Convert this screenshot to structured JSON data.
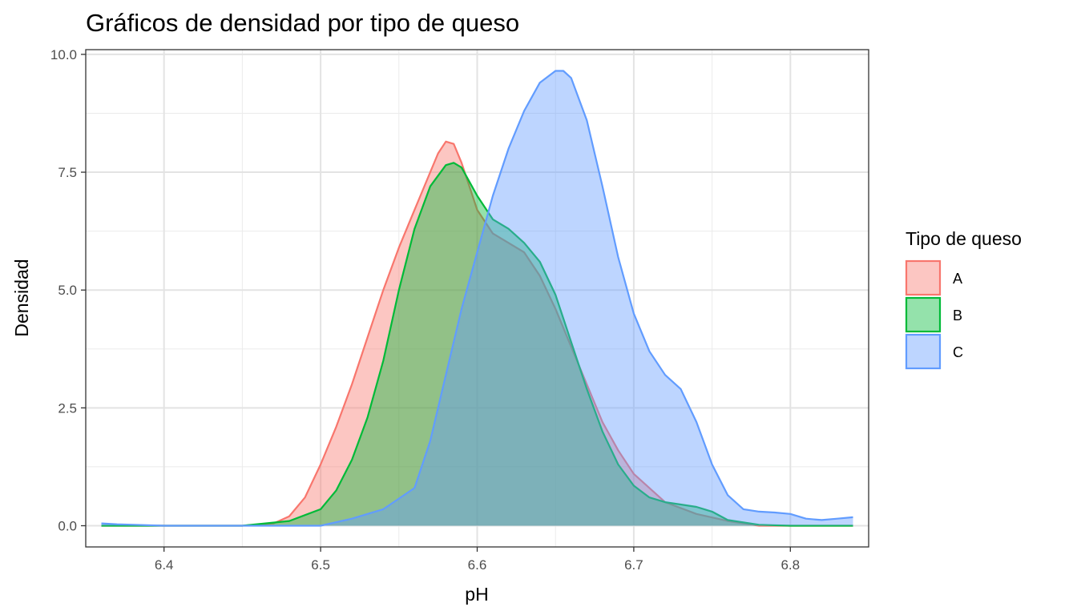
{
  "chart_data": {
    "type": "area",
    "title": "Gráficos de densidad por tipo de queso",
    "xlabel": "pH",
    "ylabel": "Densidad",
    "xlim": [
      6.35,
      6.85
    ],
    "ylim": [
      -0.45,
      10.1
    ],
    "x_ticks": [
      6.4,
      6.5,
      6.6,
      6.7,
      6.8
    ],
    "x_tick_labels": [
      "6.4",
      "6.5",
      "6.6",
      "6.7",
      "6.8"
    ],
    "y_ticks": [
      0,
      2.5,
      5,
      7.5,
      10
    ],
    "y_tick_labels": [
      "0.0",
      "2.5",
      "5.0",
      "7.5",
      "10.0"
    ],
    "grid": true,
    "legend": {
      "title": "Tipo de queso",
      "position": "right"
    },
    "series": [
      {
        "name": "A",
        "color": "#F8766D",
        "x": [
          6.36,
          6.4,
          6.45,
          6.47,
          6.48,
          6.49,
          6.5,
          6.51,
          6.52,
          6.53,
          6.54,
          6.55,
          6.56,
          6.57,
          6.575,
          6.58,
          6.585,
          6.59,
          6.6,
          6.61,
          6.62,
          6.63,
          6.64,
          6.65,
          6.66,
          6.67,
          6.68,
          6.69,
          6.7,
          6.72,
          6.74,
          6.76,
          6.78,
          6.8,
          6.84
        ],
        "y": [
          0.0,
          0.0,
          0.0,
          0.05,
          0.2,
          0.6,
          1.3,
          2.1,
          3.0,
          4.0,
          5.0,
          5.9,
          6.7,
          7.5,
          7.9,
          8.15,
          8.1,
          7.7,
          6.7,
          6.2,
          6.0,
          5.8,
          5.3,
          4.6,
          3.8,
          3.0,
          2.2,
          1.6,
          1.1,
          0.5,
          0.25,
          0.1,
          0.0,
          0.0,
          0.0
        ]
      },
      {
        "name": "B",
        "color": "#00BA38",
        "x": [
          6.36,
          6.45,
          6.48,
          6.5,
          6.51,
          6.52,
          6.53,
          6.54,
          6.55,
          6.56,
          6.57,
          6.58,
          6.585,
          6.59,
          6.6,
          6.61,
          6.62,
          6.63,
          6.64,
          6.65,
          6.66,
          6.67,
          6.68,
          6.69,
          6.7,
          6.71,
          6.72,
          6.73,
          6.74,
          6.75,
          6.76,
          6.78,
          6.8,
          6.84
        ],
        "y": [
          0.0,
          0.0,
          0.1,
          0.35,
          0.75,
          1.4,
          2.3,
          3.5,
          5.0,
          6.3,
          7.2,
          7.65,
          7.7,
          7.6,
          7.0,
          6.5,
          6.3,
          6.0,
          5.6,
          4.9,
          3.9,
          2.9,
          2.0,
          1.3,
          0.85,
          0.6,
          0.5,
          0.45,
          0.4,
          0.3,
          0.12,
          0.02,
          0.0,
          0.0
        ]
      },
      {
        "name": "C",
        "color": "#619CFF",
        "x": [
          6.36,
          6.37,
          6.4,
          6.5,
          6.52,
          6.54,
          6.56,
          6.57,
          6.58,
          6.59,
          6.6,
          6.61,
          6.62,
          6.63,
          6.64,
          6.65,
          6.655,
          6.66,
          6.67,
          6.68,
          6.69,
          6.7,
          6.71,
          6.72,
          6.73,
          6.74,
          6.75,
          6.76,
          6.77,
          6.78,
          6.79,
          6.8,
          6.81,
          6.82,
          6.83,
          6.84
        ],
        "y": [
          0.05,
          0.03,
          0.0,
          0.0,
          0.15,
          0.35,
          0.8,
          1.8,
          3.2,
          4.6,
          5.8,
          7.0,
          8.0,
          8.8,
          9.4,
          9.65,
          9.65,
          9.5,
          8.6,
          7.2,
          5.7,
          4.5,
          3.7,
          3.2,
          2.9,
          2.2,
          1.3,
          0.65,
          0.35,
          0.3,
          0.28,
          0.25,
          0.15,
          0.12,
          0.15,
          0.18
        ]
      }
    ]
  }
}
